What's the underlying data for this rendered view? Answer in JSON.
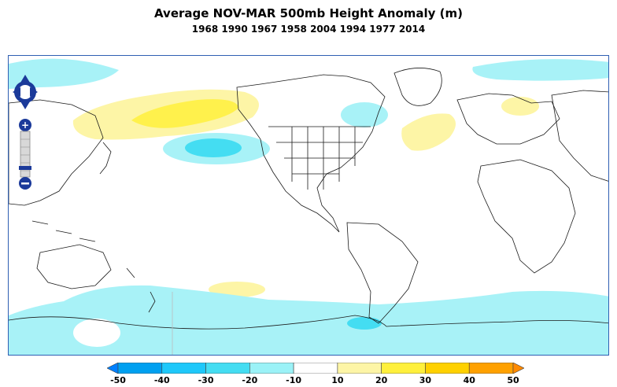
{
  "title": "Average NOV-MAR 500mb Height Anomaly (m)",
  "subtitle": "1968 1990 1967 1958 2004 1994 1977 2014",
  "map": {
    "type": "height-anomaly-contour-map",
    "controls": {
      "pan": "pan-arrows-icon",
      "zoom_in": "+",
      "zoom_out": "−"
    }
  },
  "colorbar": {
    "ticks": [
      "-50",
      "-40",
      "-30",
      "-20",
      "-10",
      "10",
      "20",
      "30",
      "40",
      "50"
    ],
    "colors": [
      "#00a0f0",
      "#1ec8fa",
      "#44ddf2",
      "#9bf2f7",
      "#ffffff",
      "#fdf5a6",
      "#fff03c",
      "#ffd100",
      "#ffa100"
    ],
    "under_color": "#0080ff",
    "over_color": "#ff8a00"
  }
}
